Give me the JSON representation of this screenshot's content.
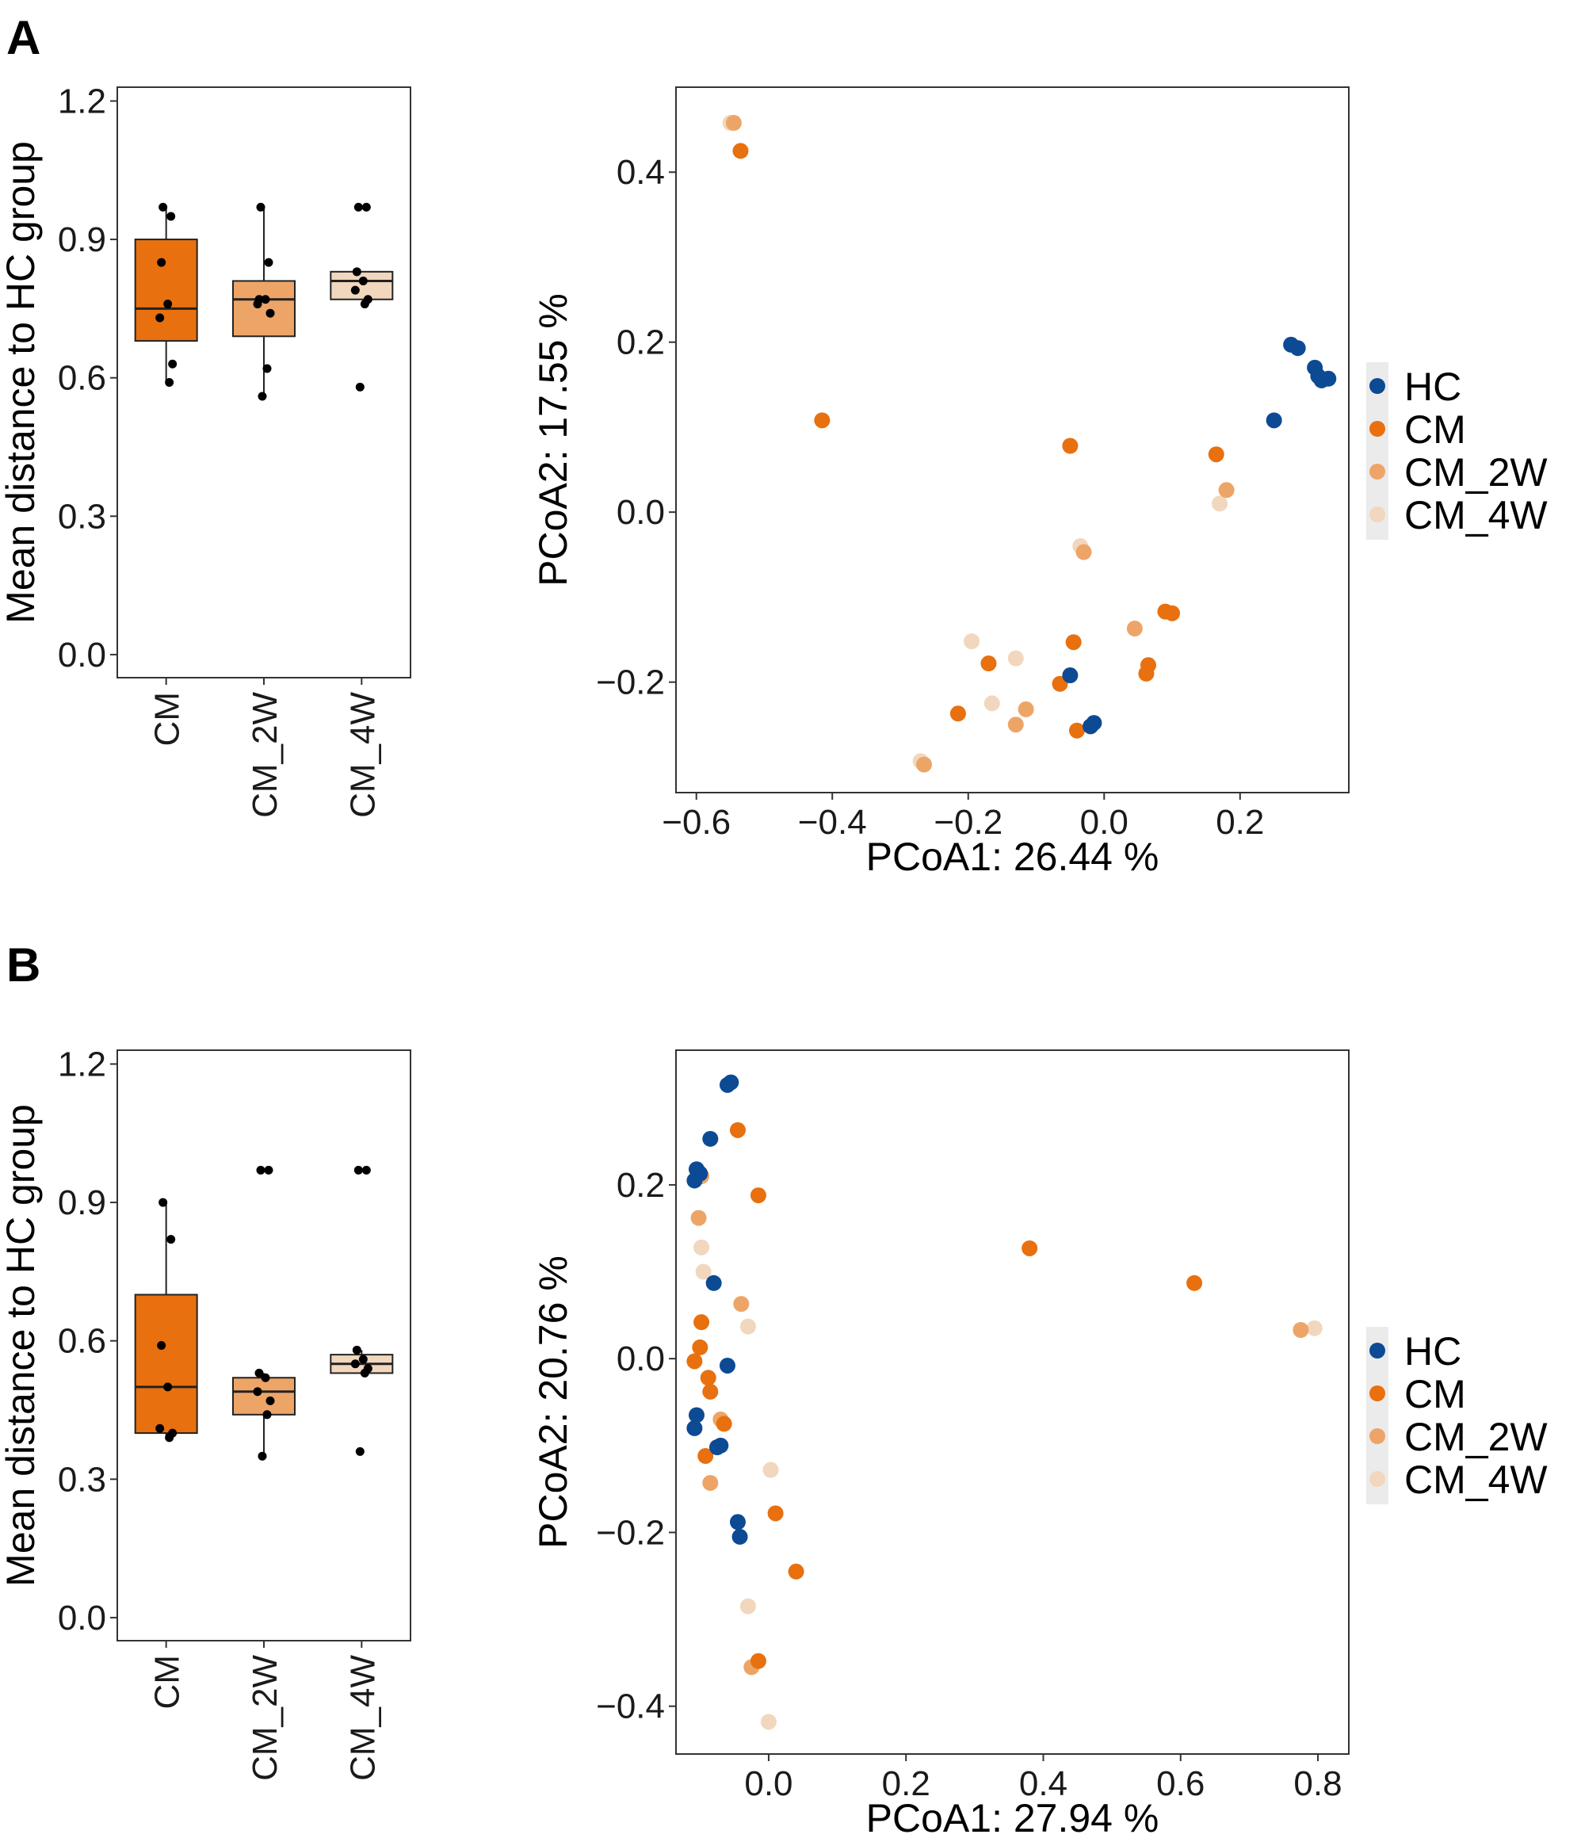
{
  "colors": {
    "HC": "#0d4a94",
    "CM": "#e8700f",
    "CM_2W": "#eda567",
    "CM_4W": "#f1d7bd",
    "frame": "#333333",
    "text": "#1a1a1a"
  },
  "chart_data": [
    {
      "panel": "A",
      "type": "box",
      "ylabel": "Mean distance to HC group",
      "ylim": [
        -0.05,
        1.23
      ],
      "yticks": [
        "0.0",
        "0.3",
        "0.6",
        "0.9",
        "1.2"
      ],
      "categories": [
        "CM",
        "CM_2W",
        "CM_4W"
      ],
      "boxes": [
        {
          "group": "CM",
          "lower_whisker": 0.59,
          "q1": 0.68,
          "median": 0.75,
          "q3": 0.9,
          "upper_whisker": 0.97,
          "points": [
            0.97,
            0.95,
            0.85,
            0.76,
            0.73,
            0.63,
            0.59
          ]
        },
        {
          "group": "CM_2W",
          "lower_whisker": 0.56,
          "q1": 0.69,
          "median": 0.77,
          "q3": 0.81,
          "upper_whisker": 0.97,
          "points": [
            0.97,
            0.85,
            0.77,
            0.77,
            0.76,
            0.74,
            0.62,
            0.56
          ]
        },
        {
          "group": "CM_4W",
          "lower_whisker": 0.77,
          "q1": 0.77,
          "median": 0.81,
          "q3": 0.83,
          "upper_whisker": 0.83,
          "points": [
            0.97,
            0.97,
            0.83,
            0.81,
            0.79,
            0.77,
            0.76,
            0.58
          ]
        }
      ]
    },
    {
      "panel": "A",
      "type": "scatter",
      "xlabel": "PCoA1: 26.44 %",
      "ylabel": "PCoA2: 17.55 %",
      "xlim": [
        -0.63,
        0.36
      ],
      "ylim": [
        -0.33,
        0.5
      ],
      "xticks": [
        "−0.6",
        "−0.4",
        "−0.2",
        "0.0",
        "0.2"
      ],
      "yticks": [
        "−0.2",
        "0.0",
        "0.2",
        "0.4"
      ],
      "legend": [
        "HC",
        "CM",
        "CM_2W",
        "CM_4W"
      ],
      "series": [
        {
          "name": "HC",
          "points": [
            [
              0.275,
              0.197
            ],
            [
              0.285,
              0.193
            ],
            [
              0.31,
              0.17
            ],
            [
              0.315,
              0.16
            ],
            [
              0.32,
              0.155
            ],
            [
              0.33,
              0.157
            ],
            [
              0.25,
              0.108
            ],
            [
              -0.05,
              -0.192
            ],
            [
              -0.015,
              -0.248
            ],
            [
              -0.02,
              -0.252
            ]
          ]
        },
        {
          "name": "CM",
          "points": [
            [
              -0.535,
              0.425
            ],
            [
              -0.415,
              0.108
            ],
            [
              -0.05,
              0.078
            ],
            [
              0.165,
              0.068
            ],
            [
              -0.045,
              -0.153
            ],
            [
              0.09,
              -0.117
            ],
            [
              0.1,
              -0.119
            ],
            [
              0.065,
              -0.18
            ],
            [
              0.062,
              -0.19
            ],
            [
              -0.17,
              -0.178
            ],
            [
              -0.065,
              -0.202
            ],
            [
              -0.215,
              -0.237
            ],
            [
              -0.04,
              -0.257
            ]
          ]
        },
        {
          "name": "CM_2W",
          "points": [
            [
              -0.545,
              0.458
            ],
            [
              0.18,
              0.026
            ],
            [
              -0.03,
              -0.047
            ],
            [
              0.045,
              -0.137
            ],
            [
              -0.115,
              -0.232
            ],
            [
              -0.13,
              -0.25
            ],
            [
              -0.265,
              -0.297
            ]
          ]
        },
        {
          "name": "CM_4W",
          "points": [
            [
              -0.55,
              0.458
            ],
            [
              0.17,
              0.01
            ],
            [
              -0.035,
              -0.04
            ],
            [
              -0.195,
              -0.152
            ],
            [
              -0.13,
              -0.172
            ],
            [
              -0.165,
              -0.225
            ],
            [
              -0.27,
              -0.293
            ]
          ]
        }
      ]
    },
    {
      "panel": "B",
      "type": "box",
      "ylabel": "Mean distance to HC group",
      "ylim": [
        -0.05,
        1.23
      ],
      "yticks": [
        "0.0",
        "0.3",
        "0.6",
        "0.9",
        "1.2"
      ],
      "categories": [
        "CM",
        "CM_2W",
        "CM_4W"
      ],
      "boxes": [
        {
          "group": "CM",
          "lower_whisker": 0.39,
          "q1": 0.4,
          "median": 0.5,
          "q3": 0.7,
          "upper_whisker": 0.9,
          "points": [
            0.9,
            0.82,
            0.59,
            0.5,
            0.41,
            0.4,
            0.39
          ]
        },
        {
          "group": "CM_2W",
          "lower_whisker": 0.35,
          "q1": 0.44,
          "median": 0.49,
          "q3": 0.52,
          "upper_whisker": 0.53,
          "points": [
            0.97,
            0.97,
            0.53,
            0.52,
            0.49,
            0.47,
            0.44,
            0.35
          ]
        },
        {
          "group": "CM_4W",
          "lower_whisker": 0.53,
          "q1": 0.53,
          "median": 0.55,
          "q3": 0.57,
          "upper_whisker": 0.58,
          "points": [
            0.97,
            0.97,
            0.58,
            0.56,
            0.55,
            0.54,
            0.53,
            0.36
          ]
        }
      ]
    },
    {
      "panel": "B",
      "type": "scatter",
      "xlabel": "PCoA1: 27.94 %",
      "ylabel": "PCoA2: 20.76 %",
      "xlim": [
        -0.135,
        0.845
      ],
      "ylim": [
        -0.455,
        0.355
      ],
      "xticks": [
        "0.0",
        "0.2",
        "0.4",
        "0.6",
        "0.8"
      ],
      "yticks": [
        "−0.4",
        "−0.2",
        "0.0",
        "0.2"
      ],
      "legend": [
        "HC",
        "CM",
        "CM_2W",
        "CM_4W"
      ],
      "series": [
        {
          "name": "HC",
          "points": [
            [
              -0.06,
              0.315
            ],
            [
              -0.055,
              0.318
            ],
            [
              -0.085,
              0.253
            ],
            [
              -0.105,
              0.218
            ],
            [
              -0.1,
              0.213
            ],
            [
              -0.108,
              0.205
            ],
            [
              -0.08,
              0.087
            ],
            [
              -0.06,
              -0.008
            ],
            [
              -0.07,
              -0.1
            ],
            [
              -0.075,
              -0.102
            ],
            [
              -0.105,
              -0.065
            ],
            [
              -0.108,
              -0.08
            ],
            [
              -0.045,
              -0.188
            ],
            [
              -0.042,
              -0.205
            ]
          ]
        },
        {
          "name": "CM",
          "points": [
            [
              -0.045,
              0.263
            ],
            [
              -0.015,
              0.188
            ],
            [
              0.38,
              0.127
            ],
            [
              0.62,
              0.087
            ],
            [
              -0.098,
              0.042
            ],
            [
              -0.1,
              0.013
            ],
            [
              -0.108,
              -0.003
            ],
            [
              -0.088,
              -0.022
            ],
            [
              -0.085,
              -0.038
            ],
            [
              -0.065,
              -0.075
            ],
            [
              -0.092,
              -0.112
            ],
            [
              0.01,
              -0.178
            ],
            [
              0.04,
              -0.245
            ],
            [
              -0.015,
              -0.348
            ]
          ]
        },
        {
          "name": "CM_2W",
          "points": [
            [
              -0.098,
              0.21
            ],
            [
              -0.102,
              0.162
            ],
            [
              -0.04,
              0.063
            ],
            [
              -0.07,
              -0.07
            ],
            [
              -0.085,
              -0.143
            ],
            [
              -0.025,
              -0.355
            ],
            [
              0.775,
              0.033
            ]
          ]
        },
        {
          "name": "CM_4W",
          "points": [
            [
              -0.098,
              0.128
            ],
            [
              -0.095,
              0.1
            ],
            [
              -0.03,
              0.037
            ],
            [
              0.003,
              -0.128
            ],
            [
              -0.03,
              -0.285
            ],
            [
              0.0,
              -0.418
            ],
            [
              0.795,
              0.035
            ]
          ]
        }
      ]
    }
  ],
  "panels": {
    "A": {
      "letter": "A"
    },
    "B": {
      "letter": "B"
    }
  }
}
